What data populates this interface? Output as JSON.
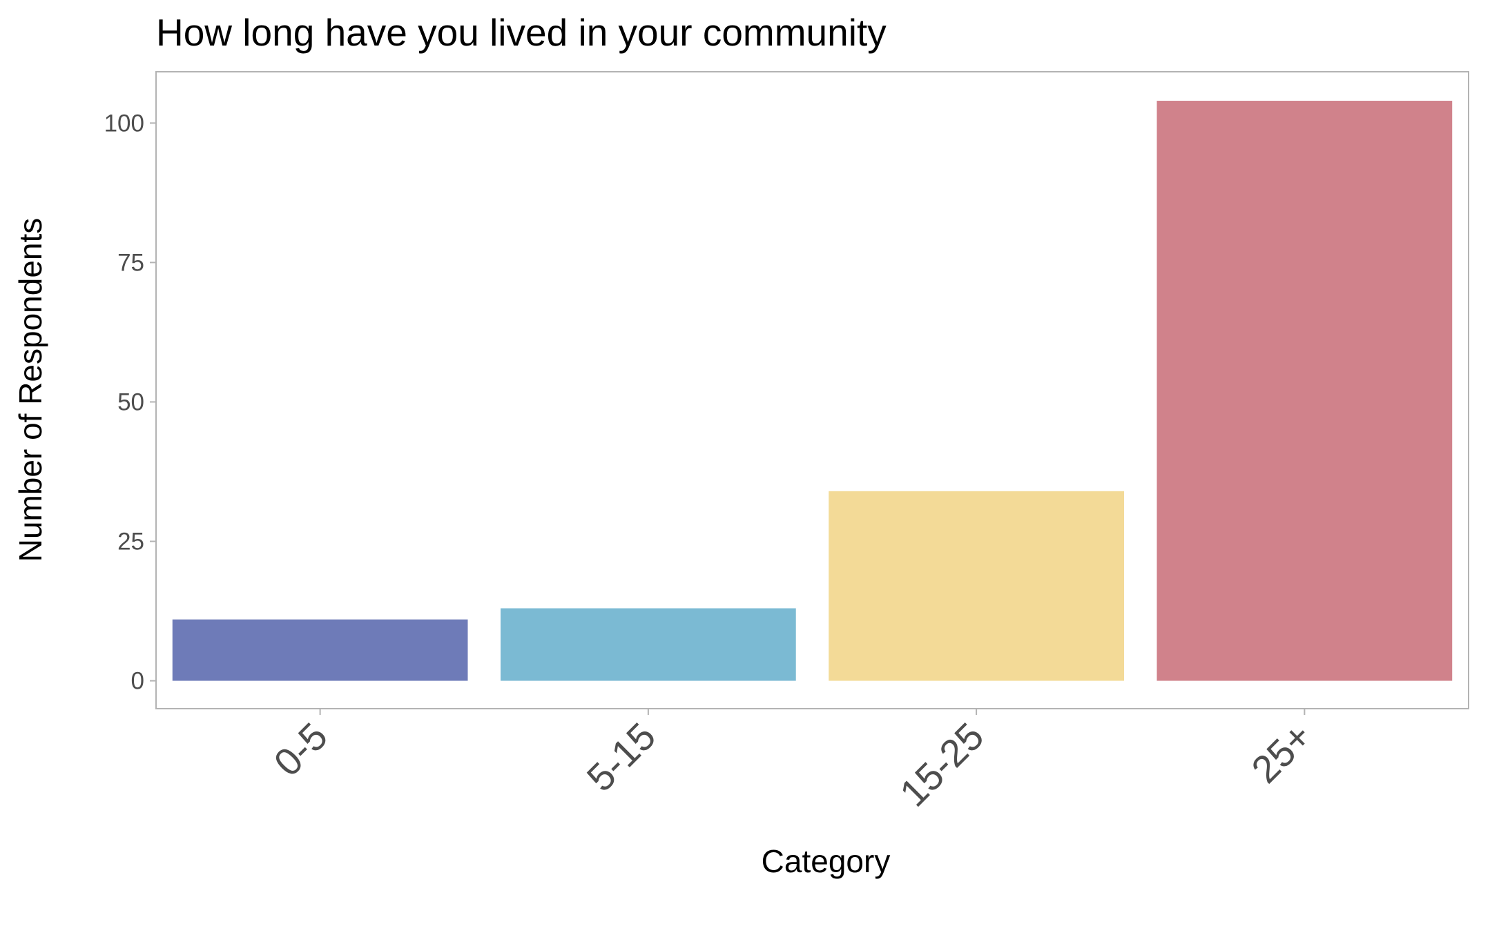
{
  "chart_data": {
    "type": "bar",
    "title": "How long have you lived in your community",
    "xlabel": "Category",
    "ylabel": "Number of Respondents",
    "categories": [
      "0-5",
      "5-15",
      "15-25",
      "25+"
    ],
    "values": [
      11,
      13,
      34,
      104
    ],
    "colors": [
      "#6e7bb8",
      "#7bbad3",
      "#f3da97",
      "#d0828b"
    ],
    "yticks": [
      0,
      25,
      50,
      75,
      100
    ],
    "ylim": [
      -5,
      109.2
    ],
    "grid": false,
    "legend": "none",
    "panel_border_color": "#b3b3b3"
  }
}
